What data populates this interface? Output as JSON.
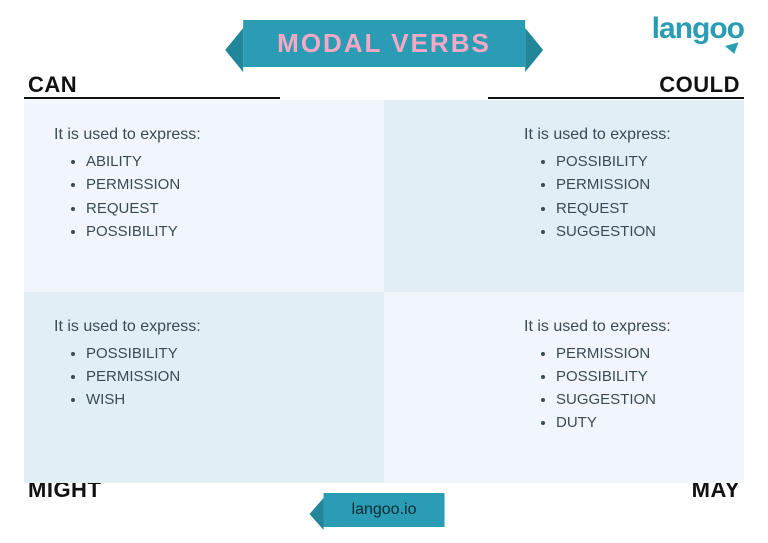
{
  "brand": {
    "name_part1": "lang",
    "name_part2": "oo",
    "color": "#2a9db5"
  },
  "title": {
    "text": "MODAL VERBS",
    "bg": "#2a9db5",
    "fg": "#f7a8c4"
  },
  "footer": {
    "text": "langoo.io",
    "bg": "#2a9db5"
  },
  "colors": {
    "cell_light": "#f0f6fb",
    "cell_dark": "#e1eef5",
    "text": "#3b4a54",
    "heading": "#111111",
    "rule": "#111111"
  },
  "quadrants": {
    "top_left": {
      "heading": "CAN",
      "intro": "It is used to express:",
      "items": [
        "ABILITY",
        "PERMISSION",
        "REQUEST",
        "POSSIBILITY"
      ]
    },
    "top_right": {
      "heading": "COULD",
      "intro": "It is used to express:",
      "items": [
        "POSSIBILITY",
        "PERMISSION",
        "REQUEST",
        "SUGGESTION"
      ]
    },
    "bottom_left": {
      "heading": "MIGHT",
      "intro": "It is used to express:",
      "items": [
        "POSSIBILITY",
        "PERMISSION",
        "WISH"
      ]
    },
    "bottom_right": {
      "heading": "MAY",
      "intro": "It is used to express:",
      "items": [
        "PERMISSION",
        "POSSIBILITY",
        "SUGGESTION",
        "DUTY"
      ]
    }
  }
}
